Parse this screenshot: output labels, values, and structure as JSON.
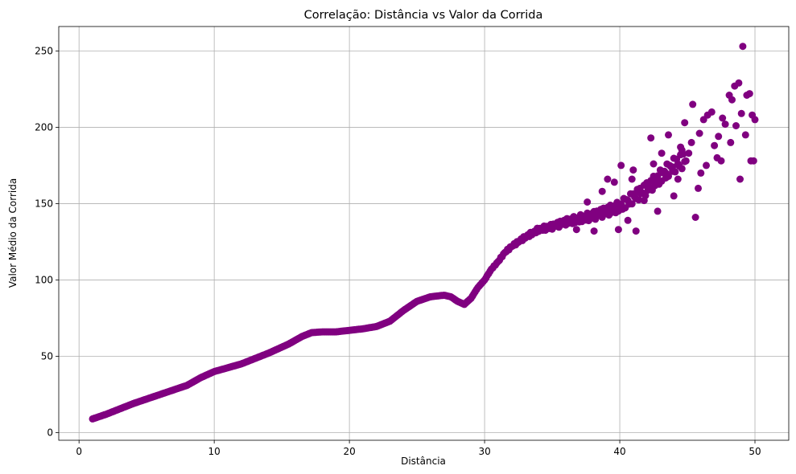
{
  "chart_data": {
    "type": "scatter",
    "title": "Correlação: Distância vs Valor da Corrida",
    "xlabel": "Distância",
    "ylabel": "Valor Médio da Corrida",
    "xlim": [
      -1.5,
      52.5
    ],
    "ylim": [
      -5,
      266
    ],
    "grid": true,
    "legend": "none",
    "colors": {
      "marker": "#800080",
      "grid": "#b0b0b0",
      "axis": "#000000"
    },
    "x_ticks": [
      {
        "value": 0,
        "label": "0"
      },
      {
        "value": 10,
        "label": "10"
      },
      {
        "value": 20,
        "label": "20"
      },
      {
        "value": 30,
        "label": "30"
      },
      {
        "value": 40,
        "label": "40"
      },
      {
        "value": 50,
        "label": "50"
      }
    ],
    "y_ticks": [
      {
        "value": 0,
        "label": "0"
      },
      {
        "value": 50,
        "label": "50"
      },
      {
        "value": 100,
        "label": "100"
      },
      {
        "value": 150,
        "label": "150"
      },
      {
        "value": 200,
        "label": "200"
      },
      {
        "value": 250,
        "label": "250"
      }
    ],
    "curve_anchors": [
      [
        1.0,
        9
      ],
      [
        2.0,
        12
      ],
      [
        4.0,
        19
      ],
      [
        6.0,
        25
      ],
      [
        8.0,
        31
      ],
      [
        9.0,
        36
      ],
      [
        10.0,
        40
      ],
      [
        12.0,
        45
      ],
      [
        14.0,
        52
      ],
      [
        15.5,
        58
      ],
      [
        16.5,
        63
      ],
      [
        17.2,
        65.5
      ],
      [
        18.0,
        66
      ],
      [
        19.0,
        66
      ],
      [
        20.0,
        67
      ],
      [
        21.0,
        68
      ],
      [
        22.0,
        69.5
      ],
      [
        23.0,
        73
      ],
      [
        24.0,
        80
      ],
      [
        25.0,
        86
      ],
      [
        26.0,
        89
      ],
      [
        27.0,
        90
      ],
      [
        27.5,
        89
      ],
      [
        28.0,
        86
      ],
      [
        28.5,
        84
      ],
      [
        29.0,
        88
      ],
      [
        29.5,
        95
      ],
      [
        30.0,
        100
      ],
      [
        30.5,
        107
      ],
      [
        31.0,
        112
      ],
      [
        31.5,
        118
      ],
      [
        32.0,
        122
      ],
      [
        33.0,
        128
      ],
      [
        34.0,
        133
      ],
      [
        35.0,
        135
      ],
      [
        36.0,
        138
      ],
      [
        37.0,
        140
      ],
      [
        38.0,
        142
      ],
      [
        40.0,
        148
      ],
      [
        42.0,
        160
      ],
      [
        44.0,
        175
      ],
      [
        46.0,
        185
      ],
      [
        48.0,
        200
      ],
      [
        50.0,
        205
      ]
    ],
    "scatter_points": [
      [
        45.4,
        215
      ],
      [
        45.6,
        141
      ],
      [
        46.2,
        205
      ],
      [
        46.5,
        208
      ],
      [
        47.2,
        180
      ],
      [
        47.5,
        178
      ],
      [
        48.1,
        221
      ],
      [
        48.3,
        218
      ],
      [
        48.5,
        227
      ],
      [
        48.8,
        229
      ],
      [
        49.0,
        209
      ],
      [
        49.1,
        253
      ],
      [
        49.4,
        221
      ],
      [
        49.6,
        222
      ],
      [
        49.7,
        178
      ],
      [
        49.9,
        178
      ],
      [
        49.8,
        208
      ],
      [
        50.0,
        205
      ],
      [
        48.9,
        166
      ],
      [
        48.6,
        201
      ],
      [
        47.0,
        188
      ],
      [
        45.8,
        160
      ],
      [
        46.0,
        170
      ],
      [
        44.3,
        166
      ],
      [
        44.5,
        187
      ],
      [
        42.8,
        145
      ],
      [
        41.2,
        132
      ],
      [
        41.8,
        152
      ],
      [
        40.1,
        175
      ],
      [
        39.6,
        164
      ],
      [
        40.6,
        139
      ],
      [
        42.3,
        193
      ],
      [
        43.1,
        183
      ],
      [
        38.1,
        132
      ],
      [
        39.1,
        166
      ],
      [
        43.6,
        195
      ],
      [
        44.8,
        203
      ],
      [
        45.1,
        183
      ],
      [
        46.8,
        210
      ],
      [
        47.8,
        202
      ],
      [
        39.9,
        133
      ],
      [
        41.5,
        157
      ],
      [
        42.0,
        162
      ],
      [
        43.9,
        174
      ],
      [
        40.9,
        166
      ],
      [
        44.0,
        155
      ],
      [
        45.3,
        190
      ],
      [
        46.4,
        175
      ],
      [
        47.3,
        194
      ],
      [
        48.2,
        190
      ],
      [
        49.3,
        195
      ],
      [
        37.6,
        151
      ],
      [
        36.8,
        133
      ],
      [
        38.7,
        158
      ],
      [
        43.4,
        170
      ],
      [
        44.6,
        185
      ],
      [
        45.9,
        196
      ],
      [
        47.6,
        206
      ],
      [
        42.5,
        176
      ],
      [
        41.0,
        172
      ]
    ]
  }
}
